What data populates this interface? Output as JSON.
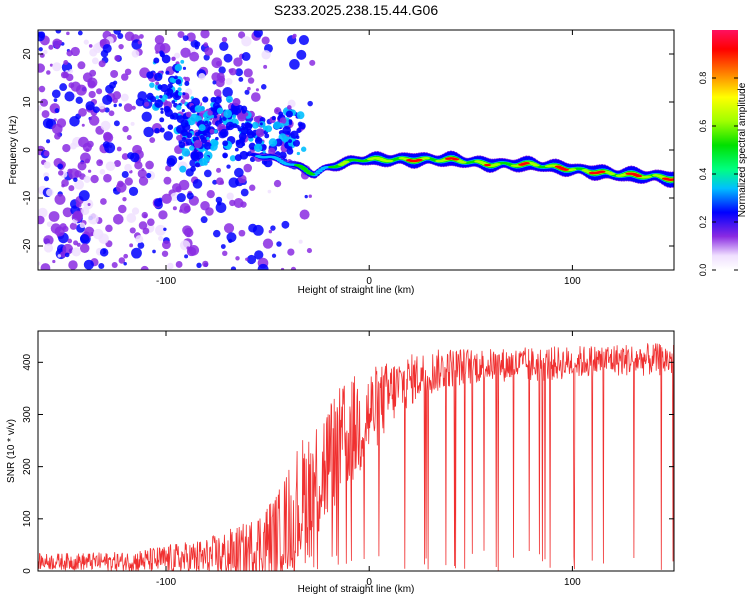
{
  "title": "S233.2025.238.15.44.G06",
  "chart_data": [
    {
      "type": "heatmap",
      "title": "S233.2025.238.15.44.G06",
      "xlabel": "Height of straight line (km)",
      "ylabel": "Frequency (Hz)",
      "xlim": [
        -163,
        150
      ],
      "ylim": [
        -25,
        25
      ],
      "xticks": [
        -100,
        0,
        100
      ],
      "xtick_labels": [
        "-100",
        "0",
        "100"
      ],
      "yticks": [
        -20,
        -10,
        0,
        10,
        20
      ],
      "ytick_labels": [
        "-20",
        "-10",
        "0",
        "10",
        "20"
      ],
      "colorbar": {
        "label": "Normalized spectral amplitude",
        "range": [
          0,
          1
        ],
        "ticks": [
          0.0,
          0.2,
          0.4,
          0.6,
          0.8
        ],
        "tick_labels": [
          "0.0",
          "0.2",
          "0.4",
          "0.6",
          "0.8"
        ]
      },
      "ridge": {
        "description_x_km": [
          -55,
          -45,
          -38,
          -32,
          -27,
          -22,
          -15,
          -5,
          0,
          5,
          15,
          25,
          40,
          60,
          80,
          100,
          120,
          140,
          150
        ],
        "frequency_hz": [
          -1,
          -2,
          -3,
          -4,
          -5,
          -4,
          -3,
          -2,
          -2,
          -2,
          -2,
          -2,
          -2,
          -3,
          -3,
          -4,
          -5,
          -5.5,
          -6
        ],
        "peak_amplitude": [
          0.35,
          0.4,
          0.45,
          0.5,
          0.45,
          0.5,
          0.6,
          0.7,
          0.75,
          0.8,
          0.9,
          0.85,
          0.85,
          0.8,
          0.85,
          0.85,
          0.9,
          0.9,
          0.9
        ]
      }
    },
    {
      "type": "line",
      "xlabel": "Height of straight line (km)",
      "ylabel": "SNR (10 * v/v)",
      "xlim": [
        -163,
        150
      ],
      "ylim": [
        0,
        460
      ],
      "xticks": [
        -100,
        0,
        100
      ],
      "xtick_labels": [
        "-100",
        "0",
        "100"
      ],
      "yticks": [
        0,
        100,
        200,
        300,
        400
      ],
      "ytick_labels": [
        "0",
        "100",
        "200",
        "300",
        "400"
      ],
      "series": [
        {
          "name": "SNR",
          "color": "#f03030",
          "envelope_x_km": [
            -163,
            -120,
            -80,
            -60,
            -45,
            -35,
            -25,
            -15,
            -5,
            5,
            15,
            25,
            40,
            60,
            80,
            100,
            120,
            150
          ],
          "envelope_mean": [
            18,
            18,
            25,
            35,
            70,
            120,
            180,
            240,
            280,
            320,
            355,
            375,
            390,
            395,
            395,
            400,
            405,
            405
          ],
          "envelope_peak": [
            40,
            45,
            80,
            120,
            190,
            300,
            370,
            400,
            430,
            430,
            435,
            440,
            445,
            440,
            445,
            445,
            450,
            450
          ]
        }
      ]
    }
  ]
}
